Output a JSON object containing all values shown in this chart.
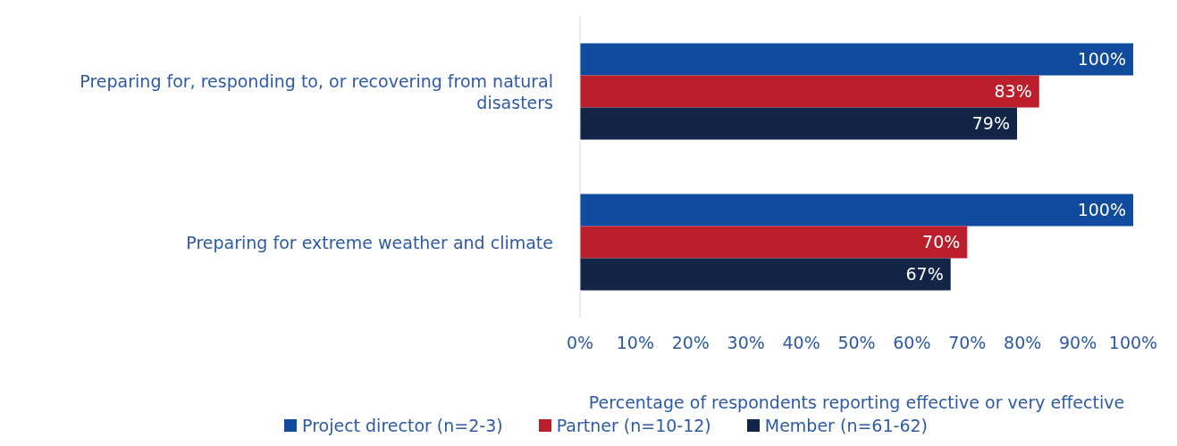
{
  "chart_data": {
    "type": "bar",
    "orientation": "horizontal",
    "xlabel": "Percentage of respondents reporting effective or very effective",
    "categories": [
      "Preparing for, responding to, or recovering from natural disasters",
      "Preparing for extreme weather and climate"
    ],
    "series": [
      {
        "name": "Project director (n=2-3)",
        "color": "#114b9e",
        "values": [
          100,
          100
        ],
        "value_labels": [
          "100%",
          "100%"
        ]
      },
      {
        "name": "Partner (n=10-12)",
        "color": "#bb1f2b",
        "values": [
          83,
          70
        ],
        "value_labels": [
          "83%",
          "70%"
        ]
      },
      {
        "name": "Member (n=61-62)",
        "color": "#132547",
        "values": [
          79,
          67
        ],
        "value_labels": [
          "79%",
          "67%"
        ]
      }
    ],
    "xlim": [
      0,
      100
    ],
    "xticks": [
      {
        "value": 0,
        "label": "0%"
      },
      {
        "value": 10,
        "label": "10%"
      },
      {
        "value": 20,
        "label": "20%"
      },
      {
        "value": 30,
        "label": "30%"
      },
      {
        "value": 40,
        "label": "40%"
      },
      {
        "value": 50,
        "label": "50%"
      },
      {
        "value": 60,
        "label": "60%"
      },
      {
        "value": 70,
        "label": "70%"
      },
      {
        "value": 80,
        "label": "80%"
      },
      {
        "value": 90,
        "label": "90%"
      },
      {
        "value": 100,
        "label": "100%"
      }
    ],
    "legend": "bottom",
    "grid": false
  }
}
